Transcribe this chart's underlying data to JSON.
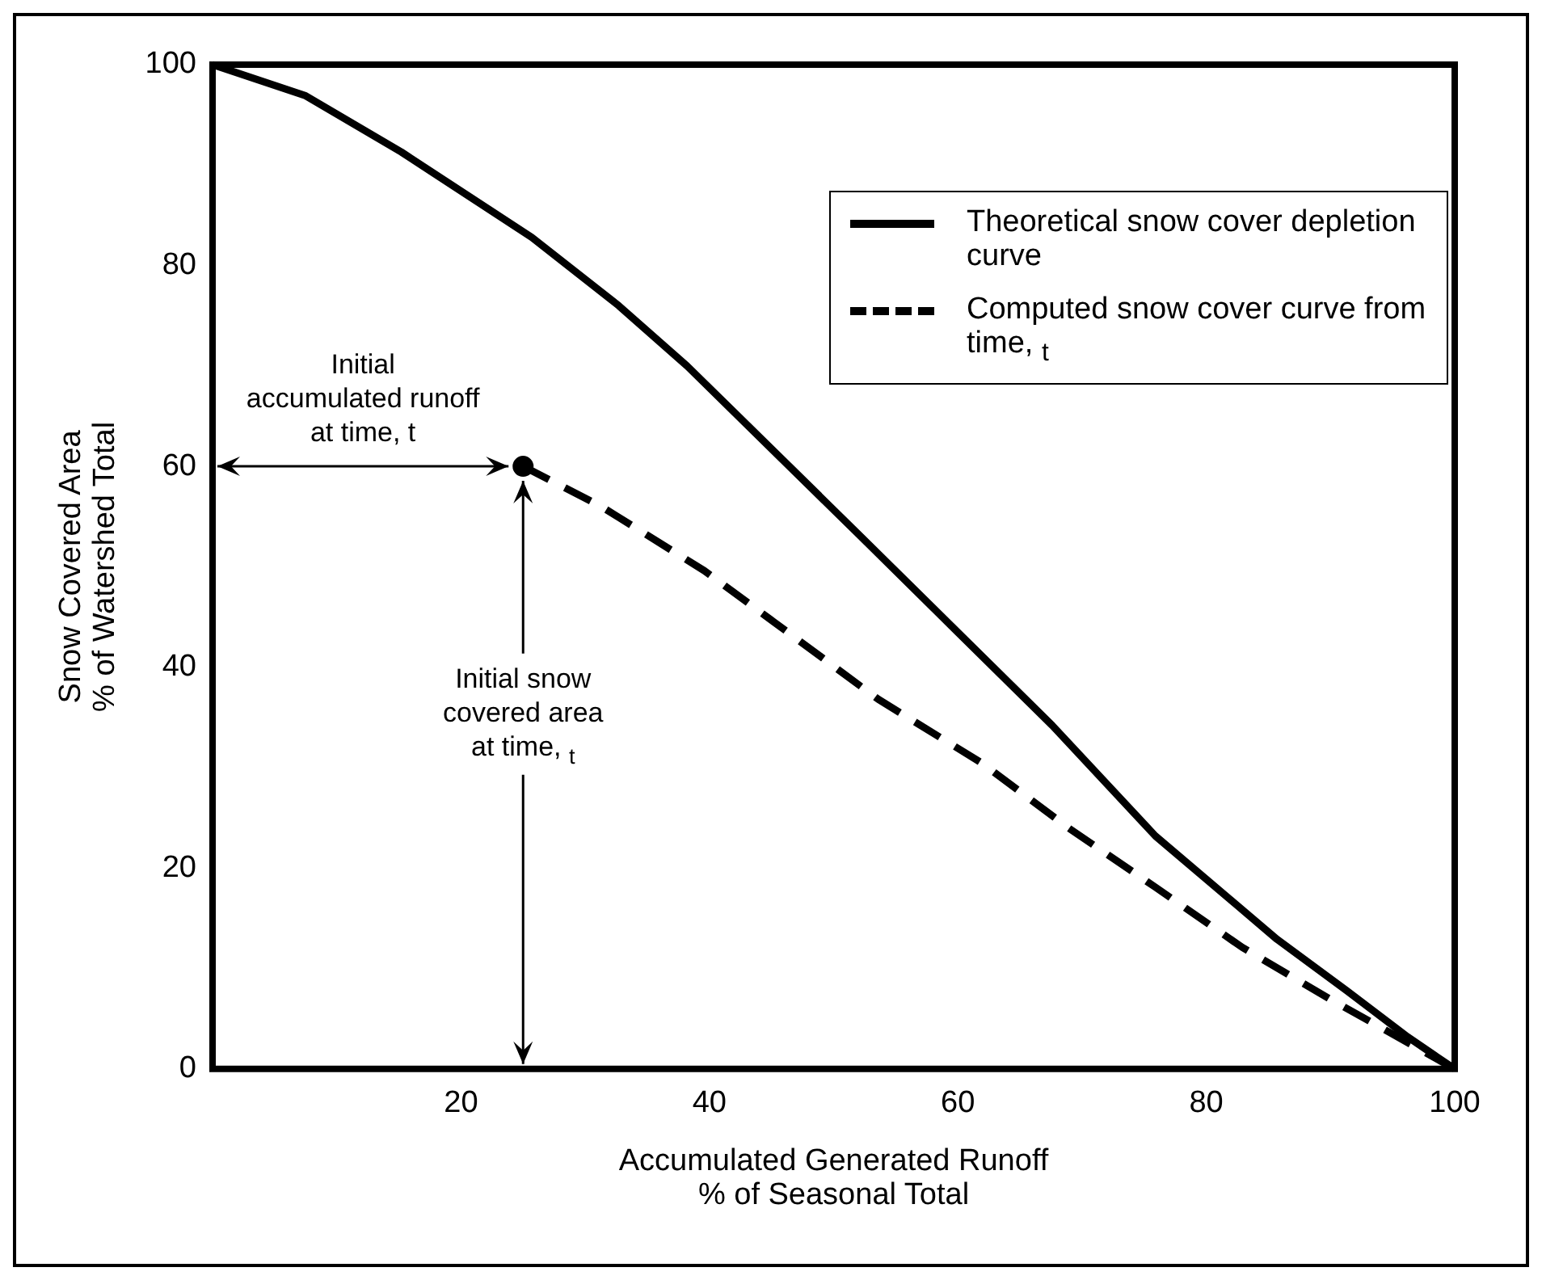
{
  "chart_data": {
    "type": "line",
    "xlabel": "Accumulated Generated Runoff\n% of Seasonal Total",
    "ylabel": "Snow Covered Area\n% of Watershed Total",
    "xlim": [
      0,
      100
    ],
    "xticks": [
      20,
      40,
      60,
      80,
      100
    ],
    "ylim": [
      0,
      100
    ],
    "yticks": [
      0,
      20,
      40,
      60,
      80,
      100
    ],
    "grid": false,
    "legend": "top right",
    "series": [
      {
        "name": "Theoretical snow cover depletion curve",
        "color": "#000000",
        "line_style": "solid",
        "marker": "none",
        "x": [
          0,
          7.5,
          15.2,
          25.7,
          32.7,
          38.2,
          45.2,
          52.2,
          59.9,
          67.6,
          75.9,
          85.7,
          91.3,
          96.2,
          100
        ],
        "values": [
          100,
          96.9,
          91.3,
          82.8,
          76,
          70,
          61.5,
          53,
          43.6,
          34.2,
          23.2,
          12.9,
          7.8,
          3.2,
          0
        ]
      },
      {
        "name": "Computed snow cover curve from time, $_{t}$",
        "color": "#000000",
        "line_style": "dashed",
        "marker": "none",
        "x": [
          25,
          31.3,
          39.6,
          45.2,
          53.6,
          62,
          68.9,
          75.9,
          82.9,
          89.9,
          100
        ],
        "values": [
          60,
          56,
          49.6,
          44.5,
          36.8,
          30.4,
          24,
          18.1,
          12.1,
          7,
          0
        ]
      },
      {
        "type": "scatter",
        "color": "#000000",
        "marker": "circle",
        "x": [
          25
        ],
        "values": [
          60
        ]
      }
    ],
    "annotations": [
      {
        "text": "Initial\naccumulated runoff\nat time, t",
        "x": 25,
        "y": 60
      },
      {
        "text": "Initial snow\ncovered area\nat time, $_{t}$",
        "x": 25,
        "y": 60
      }
    ]
  }
}
